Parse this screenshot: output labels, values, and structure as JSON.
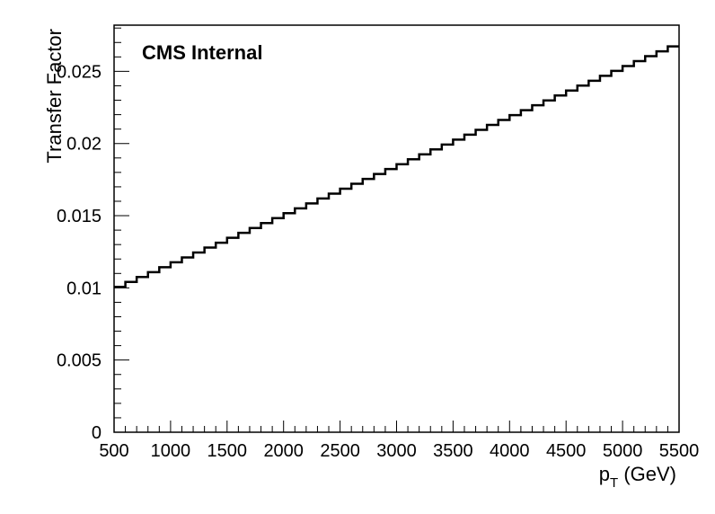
{
  "chart_data": {
    "type": "line",
    "style": "step",
    "annotation": "CMS Internal",
    "xlabel_main": "p",
    "xlabel_sub": "T",
    "xlabel_unit": " (GeV)",
    "ylabel": "Transfer Factor",
    "xlim": [
      500,
      5500
    ],
    "ylim": [
      0,
      0.0282
    ],
    "x_ticks": [
      500,
      1000,
      1500,
      2000,
      2500,
      3000,
      3500,
      4000,
      4500,
      5000,
      5500
    ],
    "x_tick_labels": [
      "500",
      "1000",
      "1500",
      "2000",
      "2500",
      "3000",
      "3500",
      "4000",
      "4500",
      "5000",
      "5500"
    ],
    "y_ticks": [
      0,
      0.005,
      0.01,
      0.015,
      0.02,
      0.025
    ],
    "y_tick_labels": [
      "0",
      "0.005",
      "0.01",
      "0.015",
      "0.02",
      "0.025"
    ],
    "grid": false,
    "series": [
      {
        "bin_edges": [
          500,
          5500
        ],
        "n_bins": 50,
        "y_start": 0.0099,
        "y_end": 0.0269,
        "color": "#000000"
      }
    ]
  }
}
